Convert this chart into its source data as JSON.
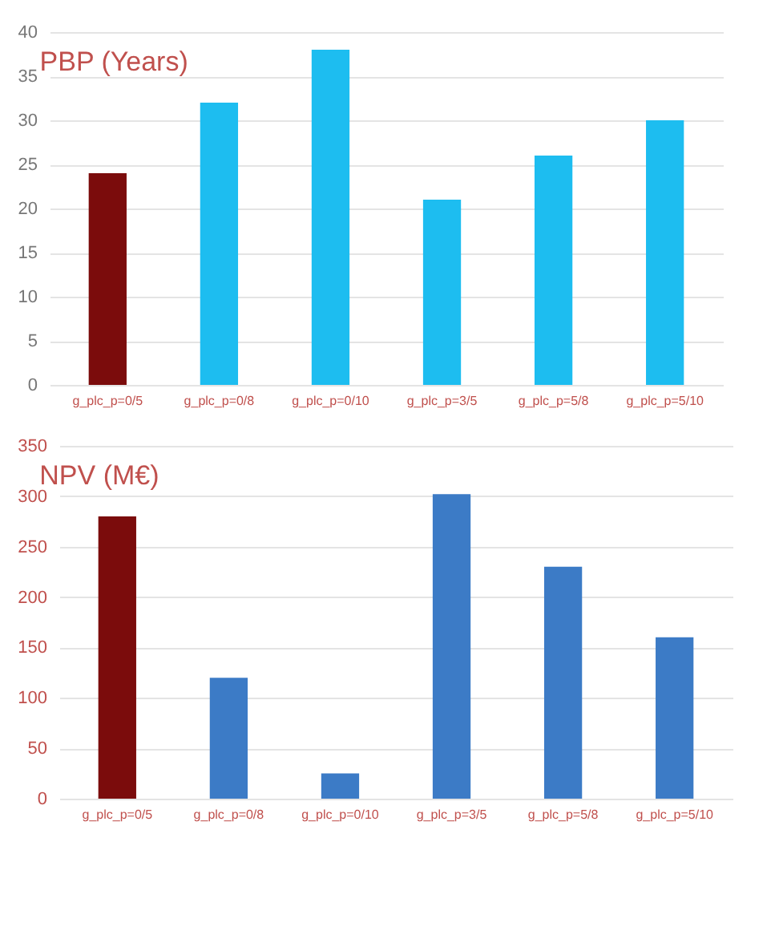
{
  "chart_data": [
    {
      "type": "bar",
      "title": "PBP (Years)",
      "categories": [
        "g_plc_p=0/5",
        "g_plc_p=0/8",
        "g_plc_p=0/10",
        "g_plc_p=3/5",
        "g_plc_p=5/8",
        "g_plc_p=5/10"
      ],
      "values": [
        24,
        32,
        38,
        21,
        26,
        30
      ],
      "colors": [
        "#7b0c0c",
        "#1dbdf0",
        "#1dbdf0",
        "#1dbdf0",
        "#1dbdf0",
        "#1dbdf0"
      ],
      "ylim": [
        0,
        40
      ],
      "yticks": [
        0,
        5,
        10,
        15,
        20,
        25,
        30,
        35,
        40
      ],
      "grid": "y"
    },
    {
      "type": "bar",
      "title": "NPV (M€)",
      "categories": [
        "g_plc_p=0/5",
        "g_plc_p=0/8",
        "g_plc_p=0/10",
        "g_plc_p=3/5",
        "g_plc_p=5/8",
        "g_plc_p=5/10"
      ],
      "values": [
        280,
        120,
        25,
        302,
        230,
        160
      ],
      "colors": [
        "#7b0c0c",
        "#3c7bc6",
        "#3c7bc6",
        "#3c7bc6",
        "#3c7bc6",
        "#3c7bc6"
      ],
      "ylim": [
        0,
        350
      ],
      "yticks": [
        0,
        50,
        100,
        150,
        200,
        250,
        300,
        350
      ],
      "grid": "y"
    }
  ]
}
